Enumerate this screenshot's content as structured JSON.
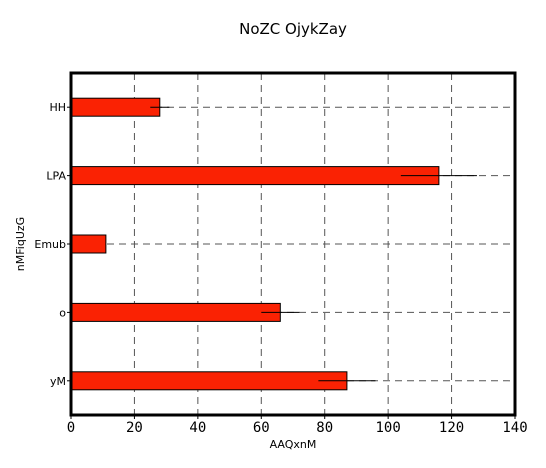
{
  "chart_data": {
    "type": "bar",
    "orientation": "horizontal",
    "title": "NoZC OjykZay",
    "xlabel": "AAQxnM",
    "ylabel": "nMFiqUzG",
    "categories": [
      "HH",
      "LPA",
      "Emub",
      "o",
      "yM"
    ],
    "values": [
      28,
      116,
      11,
      66,
      87
    ],
    "errors": [
      3,
      12,
      0,
      6,
      9
    ],
    "xlim": [
      0,
      140
    ],
    "xticks": [
      0,
      20,
      40,
      60,
      80,
      100,
      120,
      140
    ],
    "grid": true,
    "colors": {
      "bar": "#fa2203",
      "bar_edge": "#000000",
      "grid": "#555555"
    }
  }
}
